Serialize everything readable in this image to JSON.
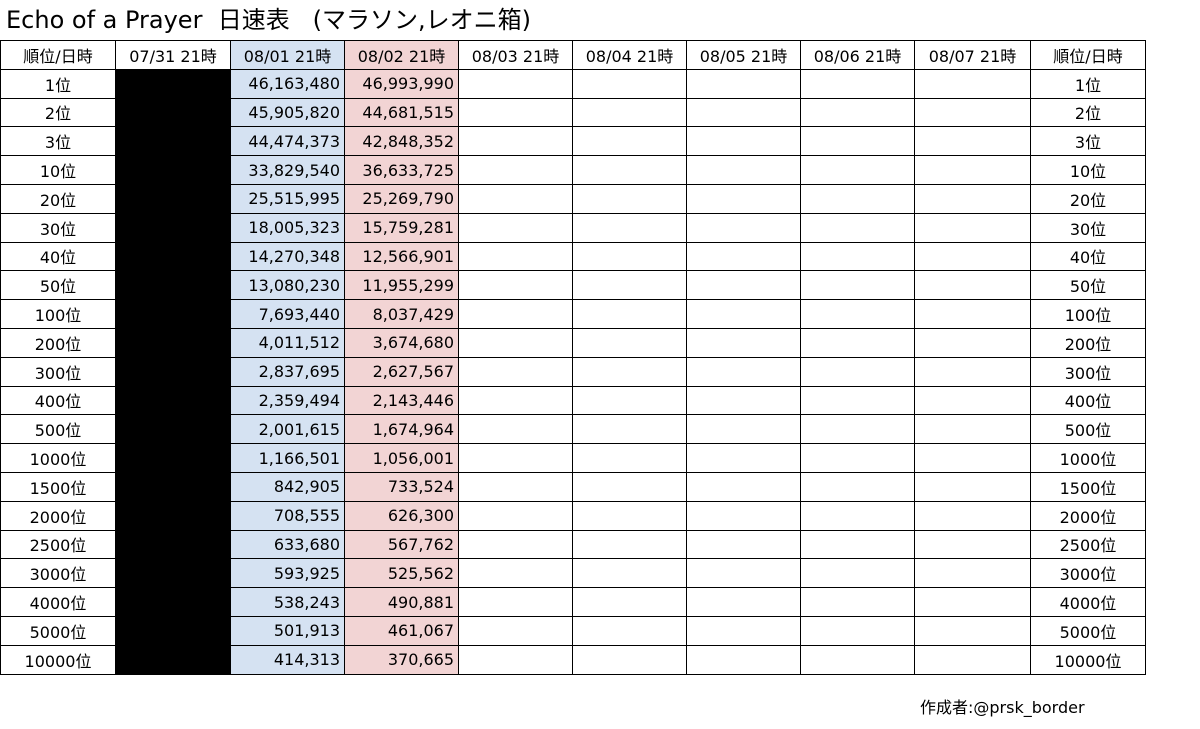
{
  "title": "Echo of a Prayer  日速表   (マラソン,レオニ箱)",
  "headers": [
    "順位/日時",
    "07/31 21時",
    "08/01 21時",
    "08/02 21時",
    "08/03 21時",
    "08/04 21時",
    "08/05 21時",
    "08/06 21時",
    "08/07 21時",
    "順位/日時"
  ],
  "rows": [
    {
      "rank": "1位",
      "d0801": "46,163,480",
      "d0802": "46,993,990"
    },
    {
      "rank": "2位",
      "d0801": "45,905,820",
      "d0802": "44,681,515"
    },
    {
      "rank": "3位",
      "d0801": "44,474,373",
      "d0802": "42,848,352"
    },
    {
      "rank": "10位",
      "d0801": "33,829,540",
      "d0802": "36,633,725"
    },
    {
      "rank": "20位",
      "d0801": "25,515,995",
      "d0802": "25,269,790"
    },
    {
      "rank": "30位",
      "d0801": "18,005,323",
      "d0802": "15,759,281"
    },
    {
      "rank": "40位",
      "d0801": "14,270,348",
      "d0802": "12,566,901"
    },
    {
      "rank": "50位",
      "d0801": "13,080,230",
      "d0802": "11,955,299"
    },
    {
      "rank": "100位",
      "d0801": "7,693,440",
      "d0802": "8,037,429"
    },
    {
      "rank": "200位",
      "d0801": "4,011,512",
      "d0802": "3,674,680"
    },
    {
      "rank": "300位",
      "d0801": "2,837,695",
      "d0802": "2,627,567"
    },
    {
      "rank": "400位",
      "d0801": "2,359,494",
      "d0802": "2,143,446"
    },
    {
      "rank": "500位",
      "d0801": "2,001,615",
      "d0802": "1,674,964"
    },
    {
      "rank": "1000位",
      "d0801": "1,166,501",
      "d0802": "1,056,001"
    },
    {
      "rank": "1500位",
      "d0801": "842,905",
      "d0802": "733,524"
    },
    {
      "rank": "2000位",
      "d0801": "708,555",
      "d0802": "626,300"
    },
    {
      "rank": "2500位",
      "d0801": "633,680",
      "d0802": "567,762"
    },
    {
      "rank": "3000位",
      "d0801": "593,925",
      "d0802": "525,562"
    },
    {
      "rank": "4000位",
      "d0801": "538,243",
      "d0802": "490,881"
    },
    {
      "rank": "5000位",
      "d0801": "501,913",
      "d0802": "461,067"
    },
    {
      "rank": "10000位",
      "d0801": "414,313",
      "d0802": "370,665"
    }
  ],
  "colors": {
    "col_0731": "#000000",
    "col_0801": "#d5e2f2",
    "col_0802": "#f2d4d4"
  },
  "credit": "作成者:@prsk_border"
}
